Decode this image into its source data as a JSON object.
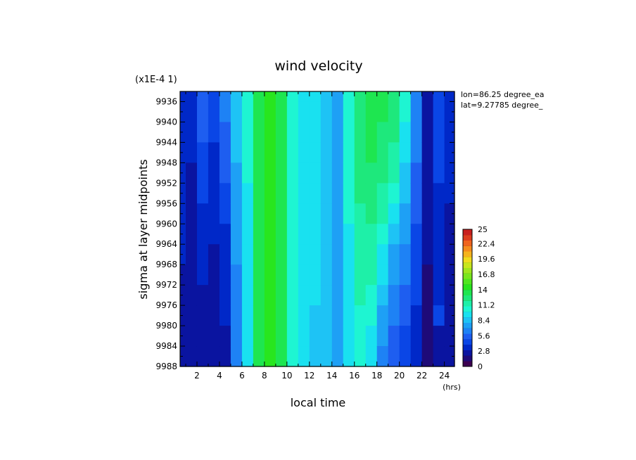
{
  "chart_data": {
    "type": "heatmap",
    "title": "wind velocity",
    "xlabel": "local time",
    "x_unit_label": "(hrs)",
    "ylabel": "sigma at layer midpoints",
    "y_scale_label": "(x1E-4 1)",
    "annotations": [
      "lon=86.25 degree_ea",
      "lat=9.27785 degree_"
    ],
    "x": [
      0.5,
      1.5,
      2.5,
      3.5,
      4.5,
      5.5,
      6.5,
      7.5,
      8.5,
      9.5,
      10.5,
      11.5,
      12.5,
      13.5,
      14.5,
      15.5,
      16.5,
      17.5,
      18.5,
      19.5,
      20.5,
      21.5,
      22.5,
      23.5,
      24.5
    ],
    "xlim": [
      0.5,
      24.9
    ],
    "x_ticks": [
      2,
      4,
      6,
      8,
      10,
      12,
      14,
      16,
      18,
      20,
      22,
      24
    ],
    "y": [
      9934,
      9938,
      9942,
      9946,
      9950,
      9954,
      9958,
      9962,
      9966,
      9970,
      9974,
      9978,
      9982,
      9986,
      9988
    ],
    "ylim": [
      9934,
      9988
    ],
    "y_ticks": [
      9936,
      9940,
      9944,
      9948,
      9952,
      9956,
      9960,
      9964,
      9968,
      9972,
      9976,
      9980,
      9984,
      9988
    ],
    "y_tick_labels": [
      "9936",
      "9940",
      "9944",
      "9948",
      "9952",
      "9956",
      "9960",
      "9964",
      "9968",
      "9972",
      "9976",
      "9980",
      "9984",
      "9988"
    ],
    "values_by_x": [
      [
        3.5,
        3.5,
        3.5,
        3.4,
        3.4,
        3.3,
        3.2,
        3.1,
        3.0,
        2.9,
        2.8,
        2.7,
        2.6,
        2.5,
        2.5
      ],
      [
        3.2,
        3.2,
        3.1,
        3.0,
        2.9,
        2.8,
        2.7,
        2.6,
        2.5,
        2.4,
        2.3,
        2.2,
        2.1,
        2.0,
        2.0
      ],
      [
        5.8,
        5.6,
        5.2,
        4.8,
        4.5,
        4.2,
        3.9,
        3.6,
        3.4,
        3.1,
        2.9,
        2.7,
        2.5,
        2.4,
        2.4
      ],
      [
        4.5,
        4.2,
        4.0,
        3.8,
        3.6,
        3.4,
        3.2,
        3.0,
        2.9,
        2.8,
        2.7,
        2.6,
        2.5,
        2.5,
        2.5
      ],
      [
        6.5,
        6.2,
        5.8,
        5.4,
        5.0,
        4.6,
        4.2,
        3.9,
        3.6,
        3.4,
        3.2,
        3.0,
        2.9,
        2.8,
        2.8
      ],
      [
        8.8,
        8.6,
        8.3,
        8.0,
        7.8,
        7.6,
        7.4,
        7.2,
        7.0,
        6.9,
        6.8,
        6.7,
        6.6,
        6.5,
        6.5
      ],
      [
        10.3,
        10.3,
        10.2,
        10.1,
        10.0,
        9.9,
        9.8,
        9.7,
        9.6,
        9.5,
        9.4,
        9.3,
        9.3,
        9.2,
        9.2
      ],
      [
        13.6,
        13.6,
        13.5,
        13.5,
        13.4,
        13.4,
        13.3,
        13.3,
        13.3,
        13.2,
        13.2,
        13.1,
        13.1,
        13.1,
        13.1
      ],
      [
        14.9,
        14.9,
        14.9,
        14.8,
        14.8,
        14.8,
        14.7,
        14.7,
        14.7,
        14.6,
        14.6,
        14.6,
        14.5,
        14.5,
        14.5
      ],
      [
        13.9,
        13.9,
        13.8,
        13.8,
        13.7,
        13.7,
        13.6,
        13.6,
        13.5,
        13.5,
        13.4,
        13.4,
        13.3,
        13.3,
        13.3
      ],
      [
        10.5,
        10.5,
        10.5,
        10.4,
        10.4,
        10.4,
        10.3,
        10.3,
        10.3,
        10.2,
        10.2,
        10.2,
        10.1,
        10.1,
        10.1
      ],
      [
        9.6,
        9.6,
        9.6,
        9.5,
        9.5,
        9.5,
        9.4,
        9.4,
        9.4,
        9.3,
        9.3,
        9.3,
        9.2,
        9.2,
        9.2
      ],
      [
        9.3,
        9.3,
        9.3,
        9.2,
        9.2,
        9.2,
        9.1,
        9.1,
        9.0,
        9.0,
        9.0,
        8.9,
        8.9,
        8.9,
        8.9
      ],
      [
        8.9,
        8.9,
        8.8,
        8.8,
        8.7,
        8.7,
        8.6,
        8.6,
        8.5,
        8.5,
        8.4,
        8.3,
        8.2,
        8.1,
        8.0
      ],
      [
        7.9,
        7.9,
        7.9,
        7.8,
        7.8,
        7.8,
        7.7,
        7.7,
        7.7,
        7.6,
        7.6,
        7.6,
        7.5,
        7.5,
        7.5
      ],
      [
        10.1,
        10.1,
        10.1,
        10.1,
        10.0,
        10.0,
        10.0,
        9.9,
        9.9,
        9.9,
        9.8,
        9.8,
        9.8,
        9.7,
        9.7
      ],
      [
        12.6,
        12.5,
        12.4,
        12.3,
        12.2,
        12.0,
        11.8,
        11.6,
        11.4,
        11.2,
        11.0,
        10.8,
        10.6,
        10.4,
        10.3
      ],
      [
        13.6,
        13.4,
        13.2,
        13.0,
        12.8,
        12.5,
        12.2,
        11.8,
        11.4,
        11.0,
        10.6,
        10.2,
        9.8,
        9.5,
        9.3
      ],
      [
        13.5,
        13.2,
        12.6,
        12.5,
        12.2,
        11.8,
        11.2,
        10.5,
        9.8,
        9.1,
        8.4,
        7.8,
        7.3,
        6.9,
        6.8
      ],
      [
        12.6,
        12.3,
        12.0,
        11.6,
        11.0,
        10.3,
        9.5,
        8.7,
        7.9,
        7.2,
        6.6,
        6.1,
        5.7,
        5.4,
        5.3
      ],
      [
        10.6,
        10.3,
        9.9,
        9.4,
        8.8,
        8.2,
        7.6,
        7.0,
        6.5,
        6.0,
        5.6,
        5.2,
        4.9,
        4.7,
        4.6
      ],
      [
        6.8,
        6.6,
        6.4,
        6.1,
        5.8,
        5.5,
        5.2,
        4.9,
        4.6,
        4.3,
        4.0,
        3.7,
        3.4,
        3.2,
        3.1
      ],
      [
        2.9,
        2.9,
        2.8,
        2.8,
        2.7,
        2.6,
        2.4,
        2.2,
        2.0,
        1.8,
        1.6,
        1.4,
        1.2,
        1.1,
        1.0
      ],
      [
        4.9,
        4.7,
        4.5,
        4.3,
        4.1,
        3.9,
        3.7,
        3.5,
        3.4,
        3.2,
        3.2,
        4.2,
        2.9,
        2.5,
        2.4
      ],
      [
        3.2,
        3.2,
        3.1,
        3.1,
        3.0,
        3.0,
        2.9,
        2.9,
        2.8,
        2.8,
        2.7,
        2.7,
        2.6,
        2.6,
        2.6
      ]
    ],
    "colorbar": {
      "min": 0,
      "max": 25,
      "tick_values": [
        0,
        2.8,
        5.6,
        8.4,
        11.2,
        14,
        16.8,
        19.6,
        22.4,
        25
      ],
      "tick_labels": [
        "0",
        "2.8",
        "5.6",
        "8.4",
        "11.2",
        "14",
        "16.8",
        "19.6",
        "22.4",
        "25"
      ],
      "colors": [
        "#3c0050",
        "#1e0a78",
        "#0a14a0",
        "#0028c8",
        "#0a46e6",
        "#1e5ef0",
        "#1e82f5",
        "#1ea0f5",
        "#1ec3f5",
        "#19e1f0",
        "#1ef5d2",
        "#1ef0a8",
        "#1ee87c",
        "#1ee650",
        "#28e61e",
        "#50e61e",
        "#78e61e",
        "#a0e61e",
        "#c8e61e",
        "#f0dc1e",
        "#f5b41e",
        "#f58c1e",
        "#f0641e",
        "#dc3c1e",
        "#c81e1e"
      ]
    },
    "grid": false,
    "legend": "right"
  }
}
